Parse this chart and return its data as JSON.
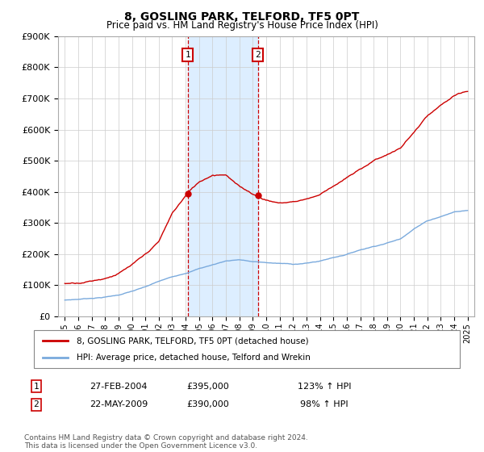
{
  "title": "8, GOSLING PARK, TELFORD, TF5 0PT",
  "subtitle": "Price paid vs. HM Land Registry's House Price Index (HPI)",
  "legend_line1": "8, GOSLING PARK, TELFORD, TF5 0PT (detached house)",
  "legend_line2": "HPI: Average price, detached house, Telford and Wrekin",
  "sale1_date": "27-FEB-2004",
  "sale1_price": 395000,
  "sale1_pct": "123% ↑ HPI",
  "sale2_date": "22-MAY-2009",
  "sale2_price": 390000,
  "sale2_pct": "98% ↑ HPI",
  "footnote": "Contains HM Land Registry data © Crown copyright and database right 2024.\nThis data is licensed under the Open Government Licence v3.0.",
  "red_color": "#cc0000",
  "blue_color": "#7aaadd",
  "shade_color": "#ddeeff",
  "marker_box_color": "#cc0000",
  "ylim": [
    0,
    900000
  ],
  "yticks": [
    0,
    100000,
    200000,
    300000,
    400000,
    500000,
    600000,
    700000,
    800000,
    900000
  ],
  "sale1_year": 2004.15,
  "sale2_year": 2009.38,
  "hpi_years": [
    1995,
    1996,
    1997,
    1998,
    1999,
    2000,
    2001,
    2002,
    2003,
    2004,
    2005,
    2006,
    2007,
    2008,
    2009,
    2010,
    2011,
    2012,
    2013,
    2014,
    2015,
    2016,
    2017,
    2018,
    2019,
    2020,
    2021,
    2022,
    2023,
    2024,
    2025
  ],
  "hpi_vals": [
    52000,
    55000,
    59000,
    63000,
    70000,
    82000,
    95000,
    112000,
    126000,
    140000,
    155000,
    167000,
    180000,
    185000,
    178000,
    175000,
    172000,
    170000,
    173000,
    180000,
    192000,
    203000,
    218000,
    230000,
    242000,
    255000,
    290000,
    315000,
    330000,
    345000,
    350000
  ],
  "red_years": [
    1995,
    1996,
    1997,
    1998,
    1999,
    2000,
    2001,
    2002,
    2003,
    2004.15,
    2005,
    2006,
    2007,
    2008,
    2009.38,
    2010,
    2011,
    2012,
    2013,
    2014,
    2015,
    2016,
    2017,
    2018,
    2019,
    2020,
    2021,
    2022,
    2023,
    2024,
    2025
  ],
  "red_vals": [
    105000,
    110000,
    118000,
    128000,
    145000,
    170000,
    200000,
    240000,
    330000,
    395000,
    430000,
    455000,
    460000,
    420000,
    390000,
    380000,
    370000,
    375000,
    385000,
    400000,
    430000,
    455000,
    480000,
    510000,
    530000,
    550000,
    600000,
    650000,
    680000,
    710000,
    720000
  ]
}
